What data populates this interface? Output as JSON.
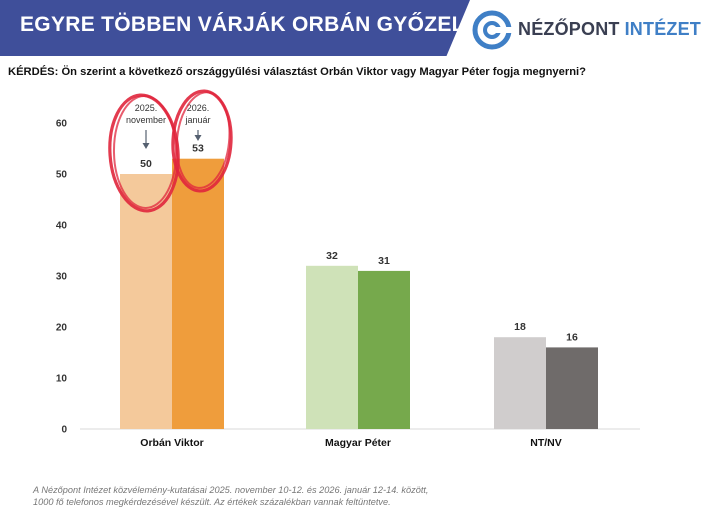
{
  "header": {
    "title": "EGYRE TÖBBEN VÁRJÁK ORBÁN GYŐZELMÉT",
    "logo_word1": "NÉZŐPONT",
    "logo_word2": "INTÉZET"
  },
  "question": "KÉRDÉS: Ön szerint a következő országgyűlési választást Orbán Viktor vagy Magyar Péter fogja megnyerni?",
  "footnote": {
    "line1": "A Nézőpont Intézet közvélemény-kutatásai 2025. november 10-12. és 2026. január 12-14. között,",
    "line2": "1000 fő telefonos megkérdezésével készült. Az értékek százalékban vannak feltüntetve."
  },
  "annotations": [
    {
      "line1": "2025.",
      "line2": "november"
    },
    {
      "line1": "2026.",
      "line2": "január"
    }
  ],
  "colors": {
    "banner": "#3f4f9a",
    "circle": "#e0263c",
    "orban_2025": "#f4c99b",
    "orban_2026": "#ef9d3c",
    "magyar_2025": "#cfe2b8",
    "magyar_2026": "#76a94c",
    "ntnv_2025": "#d0cdcd",
    "ntnv_2026": "#6f6b6a"
  },
  "chart_data": {
    "type": "bar",
    "categories": [
      "Orbán Viktor",
      "Magyar Péter",
      "NT/NV"
    ],
    "series": [
      {
        "values": [
          50,
          32,
          18
        ]
      },
      {
        "values": [
          53,
          31,
          16
        ]
      }
    ],
    "ylim": [
      0,
      60
    ],
    "yticks": [
      0,
      10,
      20,
      30,
      40,
      50,
      60
    ],
    "grid": false,
    "legend": "none",
    "title": "",
    "xlabel": "",
    "ylabel": ""
  }
}
